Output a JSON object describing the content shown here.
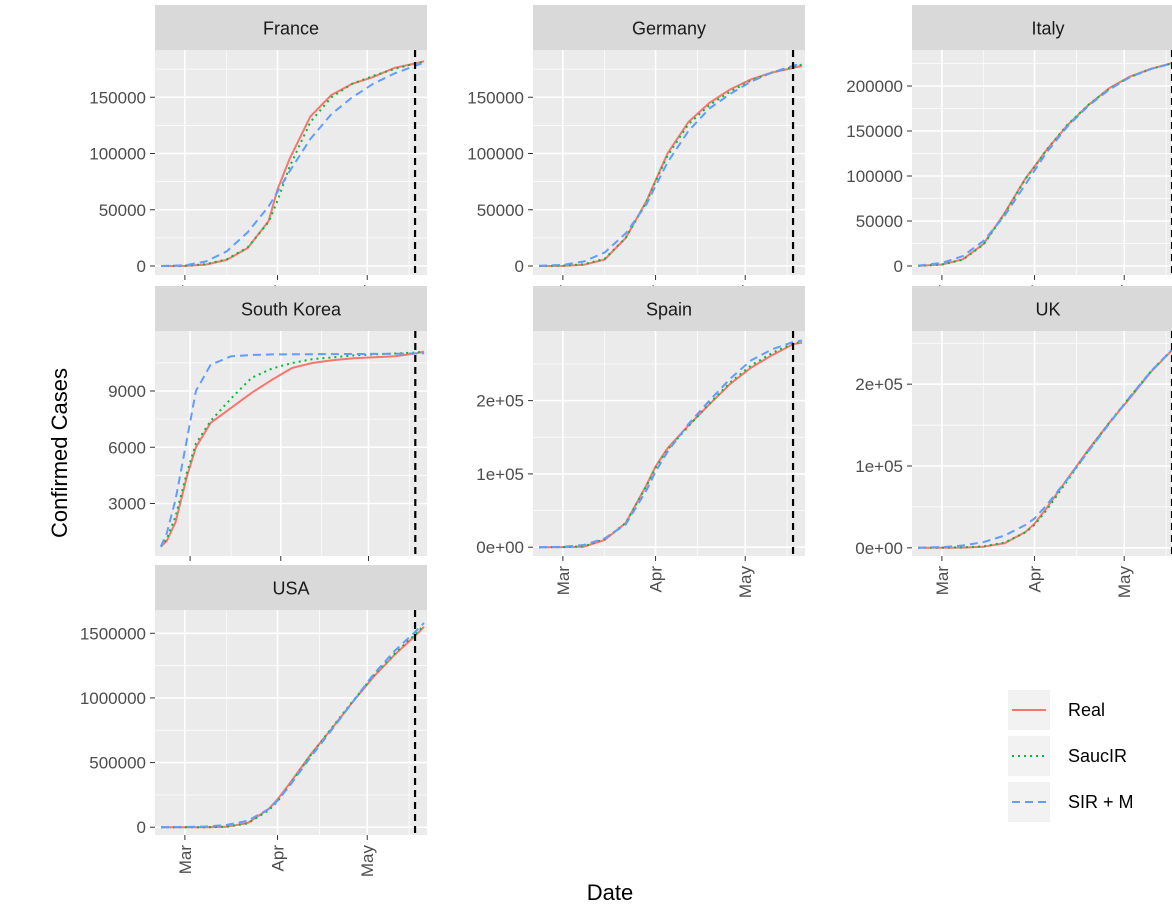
{
  "figure": {
    "ylabel": "Confirmed Cases",
    "xlabel": "Date",
    "legend": {
      "placement": "bottom-right",
      "entries": [
        {
          "name": "Real",
          "color": "#f8766d",
          "dash": "solid"
        },
        {
          "name": "SaucIR",
          "color": "#00ba38",
          "dash": "dotted"
        },
        {
          "name": "SIR + M",
          "color": "#619cff",
          "dash": "dashed"
        }
      ]
    },
    "colors": {
      "panel_bg": "#ebebeb",
      "strip_bg": "#d9d9d9",
      "grid": "#ffffff",
      "cutoff": "#000000"
    }
  },
  "chart_data": [
    {
      "type": "line",
      "title": "France",
      "x": [
        "2020-02-22",
        "2020-03-01",
        "2020-03-08",
        "2020-03-15",
        "2020-03-22",
        "2020-03-29",
        "2020-04-01",
        "2020-04-05",
        "2020-04-12",
        "2020-04-19",
        "2020-04-26",
        "2020-05-03",
        "2020-05-10",
        "2020-05-17",
        "2020-05-20"
      ],
      "xlim": [
        "2020-02-20",
        "2020-05-21"
      ],
      "xticks": [
        "Mar",
        "Apr",
        "May"
      ],
      "yticks": [
        "0",
        "50000",
        "100000",
        "150000"
      ],
      "ylim": [
        -8000,
        192000
      ],
      "cutoff": "2020-05-17",
      "series": [
        {
          "name": "Real",
          "values": [
            0,
            100,
            1200,
            5400,
            16000,
            40000,
            68000,
            95000,
            133000,
            152000,
            162000,
            168000,
            176000,
            180000,
            182000
          ]
        },
        {
          "name": "SaucIR",
          "values": [
            0,
            150,
            1600,
            6000,
            16500,
            39000,
            58000,
            88000,
            128000,
            150000,
            162000,
            169000,
            175000,
            180000,
            181500
          ]
        },
        {
          "name": "SIR + M",
          "values": [
            0,
            600,
            4000,
            13000,
            30000,
            53000,
            66000,
            84000,
            113000,
            135000,
            150000,
            162000,
            171000,
            178000,
            180500
          ]
        }
      ]
    },
    {
      "type": "line",
      "title": "Germany",
      "x": [
        "2020-02-22",
        "2020-03-01",
        "2020-03-08",
        "2020-03-15",
        "2020-03-22",
        "2020-03-29",
        "2020-04-01",
        "2020-04-05",
        "2020-04-12",
        "2020-04-19",
        "2020-04-26",
        "2020-05-03",
        "2020-05-10",
        "2020-05-17",
        "2020-05-20"
      ],
      "xlim": [
        "2020-02-20",
        "2020-05-21"
      ],
      "xticks": [
        "Mar",
        "Apr",
        "May"
      ],
      "yticks": [
        "0",
        "50000",
        "100000",
        "150000"
      ],
      "ylim": [
        -8000,
        192000
      ],
      "cutoff": "2020-05-17",
      "series": [
        {
          "name": "Real",
          "values": [
            16,
            130,
            1040,
            5800,
            25000,
            58000,
            76000,
            100000,
            128000,
            145000,
            157000,
            166000,
            172000,
            176000,
            178000
          ]
        },
        {
          "name": "SaucIR",
          "values": [
            16,
            250,
            1500,
            6500,
            25000,
            57000,
            75000,
            98000,
            126000,
            143000,
            155000,
            165000,
            172000,
            177000,
            179000
          ]
        },
        {
          "name": "SIR + M",
          "values": [
            200,
            1000,
            4000,
            12000,
            29000,
            55000,
            71000,
            92000,
            120000,
            140000,
            153000,
            164000,
            172000,
            178000,
            180000
          ]
        }
      ]
    },
    {
      "type": "line",
      "title": "Italy",
      "x": [
        "2020-02-22",
        "2020-03-01",
        "2020-03-08",
        "2020-03-15",
        "2020-03-22",
        "2020-03-29",
        "2020-04-01",
        "2020-04-05",
        "2020-04-12",
        "2020-04-19",
        "2020-04-26",
        "2020-05-03",
        "2020-05-10",
        "2020-05-17",
        "2020-05-20"
      ],
      "xlim": [
        "2020-02-20",
        "2020-05-21"
      ],
      "xticks": [
        "Mar",
        "Apr",
        "May"
      ],
      "yticks": [
        "0",
        "50000",
        "100000",
        "150000",
        "200000"
      ],
      "ylim": [
        -10000,
        240000
      ],
      "cutoff": "2020-05-17",
      "series": [
        {
          "name": "Real",
          "values": [
            60,
            1700,
            7400,
            24700,
            59000,
            97700,
            110600,
            128900,
            156400,
            178900,
            197700,
            210700,
            219100,
            225400,
            227400
          ]
        },
        {
          "name": "SaucIR",
          "values": [
            60,
            1500,
            7000,
            24000,
            58000,
            97000,
            110000,
            129000,
            157000,
            179000,
            197000,
            210000,
            219000,
            225000,
            227000
          ]
        },
        {
          "name": "SIR + M",
          "values": [
            500,
            3500,
            11000,
            28000,
            56000,
            91000,
            106000,
            126000,
            155000,
            178000,
            196000,
            210000,
            219000,
            225000,
            227000
          ]
        }
      ]
    },
    {
      "type": "line",
      "title": "South Korea",
      "x": [
        "2020-02-20",
        "2020-02-22",
        "2020-02-25",
        "2020-02-29",
        "2020-03-03",
        "2020-03-08",
        "2020-03-15",
        "2020-03-22",
        "2020-03-29",
        "2020-04-05",
        "2020-04-12",
        "2020-04-19",
        "2020-04-26",
        "2020-05-03",
        "2020-05-10",
        "2020-05-17",
        "2020-05-20"
      ],
      "xlim": [
        "2020-02-18",
        "2020-05-21"
      ],
      "xticks": [],
      "yticks": [
        "3000",
        "6000",
        "9000"
      ],
      "ylim": [
        200,
        12200
      ],
      "cutoff": "2020-05-17",
      "series": [
        {
          "name": "Real",
          "values": [
            700,
            1000,
            2000,
            4500,
            6000,
            7300,
            8100,
            8900,
            9600,
            10240,
            10500,
            10650,
            10750,
            10800,
            10850,
            11000,
            11100
          ]
        },
        {
          "name": "SaucIR",
          "values": [
            700,
            1100,
            2300,
            4700,
            6200,
            7400,
            8600,
            9700,
            10200,
            10500,
            10700,
            10800,
            10900,
            10950,
            11000,
            11050,
            11100
          ]
        },
        {
          "name": "SIR + M",
          "values": [
            700,
            1400,
            3200,
            6500,
            9000,
            10400,
            10850,
            10920,
            10950,
            10960,
            10965,
            10970,
            10975,
            10980,
            10990,
            11000,
            11010
          ]
        }
      ]
    },
    {
      "type": "line",
      "title": "Spain",
      "x": [
        "2020-02-22",
        "2020-03-01",
        "2020-03-08",
        "2020-03-15",
        "2020-03-22",
        "2020-03-29",
        "2020-04-01",
        "2020-04-05",
        "2020-04-12",
        "2020-04-19",
        "2020-04-26",
        "2020-05-03",
        "2020-05-10",
        "2020-05-17",
        "2020-05-20"
      ],
      "xlim": [
        "2020-02-20",
        "2020-05-21"
      ],
      "xticks": [
        "Mar",
        "Apr",
        "May"
      ],
      "yticks": [
        "0e+00",
        "1e+05",
        "2e+05"
      ],
      "ylim": [
        -12000,
        295000
      ],
      "cutoff": "2020-05-17",
      "series": [
        {
          "name": "Real",
          "values": [
            2,
            85,
            670,
            9900,
            33000,
            85000,
            110000,
            135000,
            166000,
            195000,
            223000,
            245000,
            262000,
            277000,
            279000
          ]
        },
        {
          "name": "SaucIR",
          "values": [
            2,
            200,
            1200,
            11000,
            33000,
            84000,
            108000,
            133000,
            165000,
            196000,
            225000,
            248000,
            265000,
            278000,
            280000
          ]
        },
        {
          "name": "SIR + M",
          "values": [
            50,
            600,
            3000,
            12000,
            31000,
            78000,
            103000,
            130000,
            168000,
            200000,
            230000,
            255000,
            270000,
            280000,
            282000
          ]
        }
      ]
    },
    {
      "type": "line",
      "title": "UK",
      "x": [
        "2020-02-22",
        "2020-03-01",
        "2020-03-08",
        "2020-03-15",
        "2020-03-22",
        "2020-03-29",
        "2020-04-01",
        "2020-04-05",
        "2020-04-12",
        "2020-04-19",
        "2020-04-26",
        "2020-05-03",
        "2020-05-10",
        "2020-05-17",
        "2020-05-20"
      ],
      "xlim": [
        "2020-02-20",
        "2020-05-21"
      ],
      "xticks": [
        "Mar",
        "Apr",
        "May"
      ],
      "yticks": [
        "0e+00",
        "1e+05",
        "2e+05"
      ],
      "ylim": [
        -10000,
        265000
      ],
      "cutoff": "2020-05-17",
      "series": [
        {
          "name": "Real",
          "values": [
            9,
            36,
            273,
            1400,
            5700,
            19500,
            29500,
            48400,
            84300,
            120000,
            152800,
            183500,
            215300,
            241500,
            249000
          ]
        },
        {
          "name": "SaucIR",
          "values": [
            9,
            100,
            500,
            1800,
            6500,
            19000,
            28000,
            46000,
            82000,
            119000,
            153000,
            185000,
            216000,
            242000,
            250000
          ]
        },
        {
          "name": "SIR + M",
          "values": [
            200,
            900,
            2800,
            7000,
            15000,
            28000,
            36000,
            52000,
            84000,
            118000,
            152000,
            185000,
            216000,
            242000,
            250000
          ]
        }
      ]
    },
    {
      "type": "line",
      "title": "USA",
      "x": [
        "2020-02-22",
        "2020-03-01",
        "2020-03-08",
        "2020-03-15",
        "2020-03-22",
        "2020-03-29",
        "2020-04-01",
        "2020-04-05",
        "2020-04-12",
        "2020-04-19",
        "2020-04-26",
        "2020-05-03",
        "2020-05-10",
        "2020-05-17",
        "2020-05-20"
      ],
      "xlim": [
        "2020-02-20",
        "2020-05-21"
      ],
      "xticks": [
        "Mar",
        "Apr",
        "May"
      ],
      "yticks": [
        "0",
        "500000",
        "1000000",
        "1500000"
      ],
      "ylim": [
        -60000,
        1680000
      ],
      "cutoff": "2020-05-17",
      "series": [
        {
          "name": "Real",
          "values": [
            15,
            75,
            540,
            3500,
            33000,
            140000,
            215000,
            337000,
            560000,
            760000,
            965000,
            1160000,
            1330000,
            1480000,
            1550000
          ]
        },
        {
          "name": "SaucIR",
          "values": [
            15,
            100,
            700,
            4000,
            30000,
            130000,
            200000,
            325000,
            555000,
            765000,
            970000,
            1170000,
            1340000,
            1490000,
            1560000
          ]
        },
        {
          "name": "SIR + M",
          "values": [
            200,
            1500,
            6000,
            18000,
            50000,
            140000,
            205000,
            320000,
            540000,
            750000,
            965000,
            1180000,
            1360000,
            1510000,
            1580000
          ]
        }
      ]
    }
  ]
}
